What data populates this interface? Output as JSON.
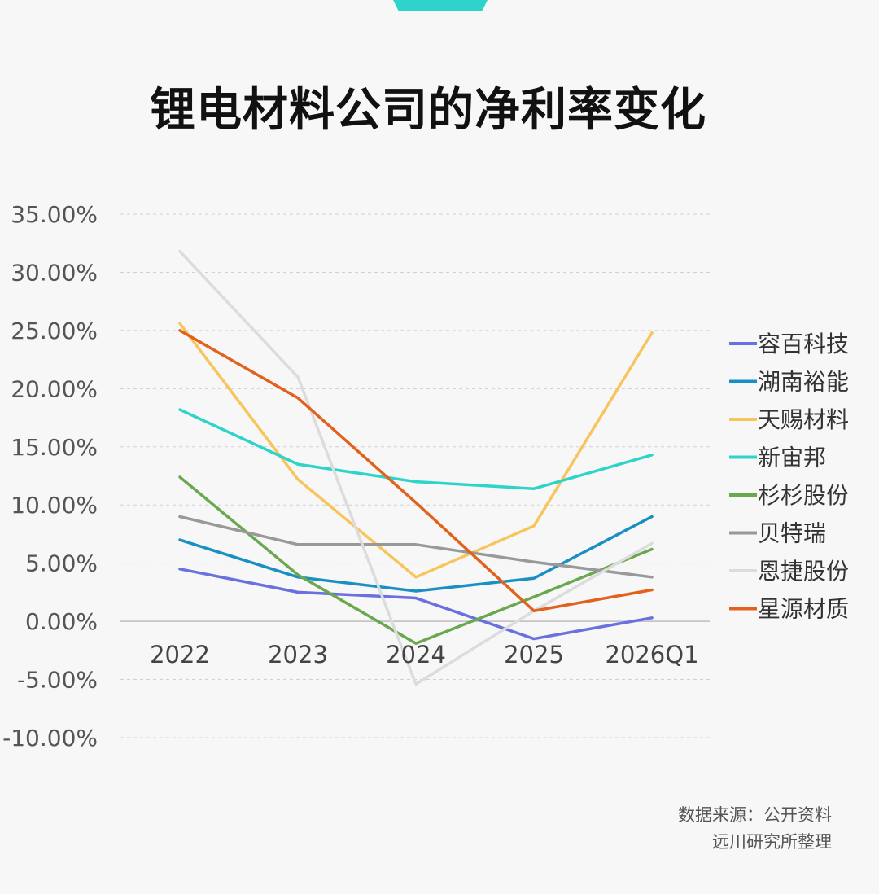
{
  "title": "锂电材料公司的净利率变化",
  "source": {
    "line1": "数据来源：公开资料",
    "line2": "远川研究所整理"
  },
  "chart_data": {
    "type": "line",
    "title": "锂电材料公司的净利率变化",
    "xlabel": "",
    "ylabel": "",
    "categories": [
      "2022",
      "2023",
      "2024",
      "2025",
      "2026Q1"
    ],
    "y_ticks": [
      "35.00%",
      "30.00%",
      "25.00%",
      "20.00%",
      "15.00%",
      "10.00%",
      "5.00%",
      "0.00%",
      "-5.00%",
      "-10.00%"
    ],
    "ylim": [
      -10,
      35
    ],
    "grid": true,
    "legend_position": "right",
    "series": [
      {
        "name": "容百科技",
        "color": "#6b70e0",
        "values": [
          4.5,
          2.5,
          2.0,
          -1.5,
          0.3
        ]
      },
      {
        "name": "湖南裕能",
        "color": "#1a8fc4",
        "values": [
          7.0,
          3.8,
          2.6,
          3.7,
          9.0
        ]
      },
      {
        "name": "天赐材料",
        "color": "#f7c55c",
        "values": [
          25.6,
          12.2,
          3.8,
          8.2,
          24.8
        ]
      },
      {
        "name": "新宙邦",
        "color": "#2ed3c9",
        "values": [
          18.2,
          13.5,
          12.0,
          11.4,
          14.3
        ]
      },
      {
        "name": "杉杉股份",
        "color": "#6aa84f",
        "values": [
          12.4,
          4.0,
          -1.9,
          2.1,
          6.2
        ]
      },
      {
        "name": "贝特瑞",
        "color": "#999999",
        "values": [
          9.0,
          6.6,
          6.6,
          5.1,
          3.8
        ]
      },
      {
        "name": "恩捷股份",
        "color": "#dcdcdc",
        "values": [
          31.8,
          21.0,
          -5.4,
          0.9,
          6.7
        ]
      },
      {
        "name": "星源材质",
        "color": "#e0621d",
        "values": [
          25.0,
          19.2,
          10.2,
          0.9,
          2.7
        ]
      }
    ]
  }
}
